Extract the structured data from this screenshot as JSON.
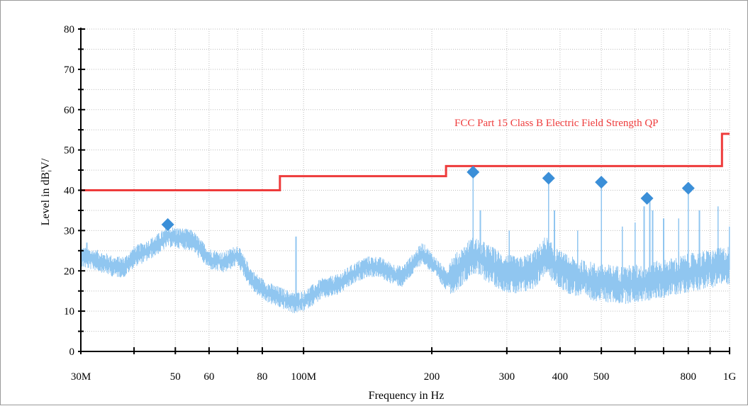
{
  "chart_data": {
    "type": "line",
    "xscale": "log",
    "xlabel": "Frequency in Hz",
    "ylabel": "Level in dB¦V/",
    "xlim": [
      30,
      1000
    ],
    "ylim": [
      0,
      80
    ],
    "grid": true,
    "x_ticks": [
      {
        "value": 30,
        "label": "30M"
      },
      {
        "value": 40,
        "label": ""
      },
      {
        "value": 50,
        "label": "50"
      },
      {
        "value": 60,
        "label": "60"
      },
      {
        "value": 70,
        "label": ""
      },
      {
        "value": 80,
        "label": "80"
      },
      {
        "value": 100,
        "label": "100M"
      },
      {
        "value": 200,
        "label": "200"
      },
      {
        "value": 300,
        "label": "300"
      },
      {
        "value": 400,
        "label": "400"
      },
      {
        "value": 500,
        "label": "500"
      },
      {
        "value": 600,
        "label": ""
      },
      {
        "value": 700,
        "label": ""
      },
      {
        "value": 800,
        "label": "800"
      },
      {
        "value": 900,
        "label": ""
      },
      {
        "value": 1000,
        "label": "1G"
      }
    ],
    "y_ticks": [
      {
        "value": 0,
        "label": "0"
      },
      {
        "value": 10,
        "label": "10"
      },
      {
        "value": 20,
        "label": "20"
      },
      {
        "value": 30,
        "label": "30"
      },
      {
        "value": 40,
        "label": "40"
      },
      {
        "value": 50,
        "label": "50"
      },
      {
        "value": 60,
        "label": "60"
      },
      {
        "value": 70,
        "label": "70"
      },
      {
        "value": 80,
        "label": "80"
      }
    ],
    "limit_line": {
      "name": "FCC Part 15 Class B Electric Field Strength QP",
      "color": "#ee3b3b",
      "points": [
        [
          30,
          40
        ],
        [
          88,
          40
        ],
        [
          88,
          43.5
        ],
        [
          216,
          43.5
        ],
        [
          216,
          46
        ],
        [
          960,
          46
        ],
        [
          960,
          54
        ],
        [
          1000,
          54
        ]
      ]
    },
    "spectrum": {
      "color": "#90c6f0",
      "envelope": [
        [
          30,
          23.5
        ],
        [
          33,
          22.5
        ],
        [
          36,
          21
        ],
        [
          38,
          21
        ],
        [
          40,
          23.5
        ],
        [
          43,
          25
        ],
        [
          46,
          27
        ],
        [
          48,
          28.5
        ],
        [
          52,
          28
        ],
        [
          55,
          27.5
        ],
        [
          57,
          25.5
        ],
        [
          60,
          23
        ],
        [
          65,
          22
        ],
        [
          70,
          24
        ],
        [
          73,
          20.5
        ],
        [
          76,
          17.5
        ],
        [
          80,
          15.5
        ],
        [
          85,
          14
        ],
        [
          90,
          13
        ],
        [
          95,
          12
        ],
        [
          100,
          12.5
        ],
        [
          105,
          14
        ],
        [
          110,
          15.5
        ],
        [
          120,
          16.5
        ],
        [
          130,
          19
        ],
        [
          140,
          21
        ],
        [
          150,
          21
        ],
        [
          160,
          19.5
        ],
        [
          170,
          18.5
        ],
        [
          180,
          21.5
        ],
        [
          190,
          24.5
        ],
        [
          200,
          22
        ],
        [
          215,
          18
        ],
        [
          230,
          20
        ],
        [
          250,
          24
        ],
        [
          270,
          22
        ],
        [
          290,
          20
        ],
        [
          320,
          18.5
        ],
        [
          350,
          20.5
        ],
        [
          370,
          24
        ],
        [
          390,
          21
        ],
        [
          420,
          19
        ],
        [
          450,
          18
        ],
        [
          500,
          17
        ],
        [
          560,
          16.5
        ],
        [
          620,
          17
        ],
        [
          700,
          18
        ],
        [
          800,
          19.5
        ],
        [
          900,
          20.5
        ],
        [
          1000,
          21.5
        ]
      ],
      "spikes": [
        [
          31,
          27
        ],
        [
          96,
          28.5
        ],
        [
          250,
          44
        ],
        [
          260,
          35
        ],
        [
          304,
          30
        ],
        [
          376,
          42.5
        ],
        [
          388,
          35
        ],
        [
          440,
          30
        ],
        [
          500,
          41
        ],
        [
          560,
          31
        ],
        [
          600,
          32
        ],
        [
          630,
          36
        ],
        [
          650,
          37.5
        ],
        [
          660,
          35
        ],
        [
          700,
          33
        ],
        [
          760,
          33
        ],
        [
          800,
          40
        ],
        [
          850,
          35
        ],
        [
          940,
          36
        ],
        [
          1000,
          31
        ]
      ]
    },
    "markers": {
      "color": "#3b8fd8",
      "points": [
        [
          48,
          31.5
        ],
        [
          250,
          44.5
        ],
        [
          376,
          43
        ],
        [
          500,
          42
        ],
        [
          640,
          38
        ],
        [
          800,
          40.5
        ]
      ]
    }
  }
}
